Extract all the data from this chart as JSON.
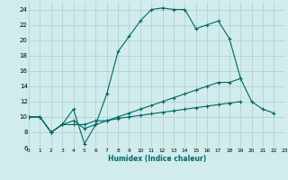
{
  "xlabel": "Humidex (Indice chaleur)",
  "bg_color": "#d0ecec",
  "grid_color": "#b0cccc",
  "line_color": "#006666",
  "xlim": [
    0,
    23
  ],
  "ylim": [
    6,
    25
  ],
  "xticks": [
    0,
    1,
    2,
    3,
    4,
    5,
    6,
    7,
    8,
    9,
    10,
    11,
    12,
    13,
    14,
    15,
    16,
    17,
    18,
    19,
    20,
    21,
    22,
    23
  ],
  "yticks": [
    6,
    8,
    10,
    12,
    14,
    16,
    18,
    20,
    22,
    24
  ],
  "line1_x": [
    0,
    1,
    2,
    3,
    4,
    5,
    6,
    7,
    8,
    9,
    10,
    11,
    12,
    13,
    14,
    15,
    16,
    17,
    18,
    19,
    20,
    21,
    22
  ],
  "line1_y": [
    10.0,
    10.0,
    8.0,
    9.0,
    11.0,
    6.5,
    9.0,
    13.0,
    18.5,
    20.5,
    22.5,
    24.0,
    24.2,
    24.0,
    24.0,
    21.5,
    22.0,
    22.5,
    20.2,
    15.0,
    12.0,
    11.0,
    10.5
  ],
  "line2_x": [
    0,
    1,
    2,
    3,
    4,
    5,
    6,
    7,
    8,
    9,
    10,
    11,
    12,
    13,
    14,
    15,
    16,
    17,
    18,
    19
  ],
  "line2_y": [
    10.0,
    10.0,
    8.0,
    9.0,
    9.0,
    9.0,
    9.5,
    9.5,
    10.0,
    10.5,
    11.0,
    11.5,
    12.0,
    12.5,
    13.0,
    13.5,
    14.0,
    14.5,
    14.5,
    15.0
  ],
  "line3_x": [
    0,
    1,
    2,
    3,
    4,
    5,
    6,
    7,
    8,
    9,
    10,
    11,
    12,
    13,
    14,
    15,
    16,
    17,
    18,
    19
  ],
  "line3_y": [
    10.0,
    10.0,
    8.0,
    9.0,
    9.5,
    8.5,
    9.0,
    9.5,
    9.8,
    10.0,
    10.2,
    10.4,
    10.6,
    10.8,
    11.0,
    11.2,
    11.4,
    11.6,
    11.8,
    12.0
  ]
}
